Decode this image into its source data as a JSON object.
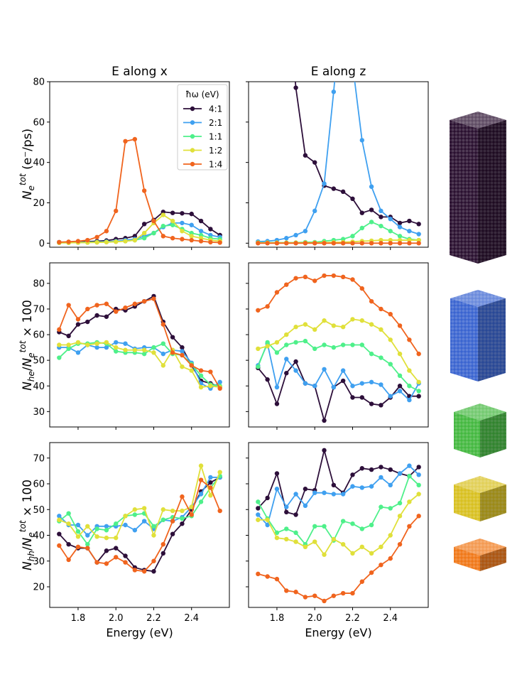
{
  "figure": {
    "col_titles": [
      "E along x",
      "E along z"
    ],
    "xlabel": "Energy (eV)",
    "ylabels": [
      "N_e^tot (e⁻/ps)",
      "N_he/N_e^tot × 100",
      "N_hh/N_e^tot × 100"
    ],
    "legend_title": "ħω (eV)",
    "legend_labels": [
      "4:1",
      "2:1",
      "1:1",
      "1:2",
      "1:4"
    ],
    "colors": [
      "#2d0f3a",
      "#3fa0f0",
      "#4ef08a",
      "#e0e03a",
      "#f0641e"
    ],
    "shape_icons": [
      "rod-4to1-icon",
      "rod-2to1-icon",
      "cube-1to1-icon",
      "slab-1to2-icon",
      "slab-1to4-icon"
    ],
    "shape_colors": [
      "#2a1030",
      "#3a64d0",
      "#44b840",
      "#d8c020",
      "#f07818"
    ]
  },
  "chart_data": [
    {
      "type": "line",
      "panel": "top-left",
      "title": "E along x",
      "xlim": [
        1.65,
        2.6
      ],
      "ylim": [
        -2,
        80
      ],
      "xticks": [
        1.8,
        2.0,
        2.2,
        2.4
      ],
      "yticks": [
        0,
        20,
        40,
        60,
        80
      ],
      "x": [
        1.7,
        1.75,
        1.8,
        1.85,
        1.9,
        1.95,
        2.0,
        2.05,
        2.1,
        2.15,
        2.2,
        2.25,
        2.3,
        2.35,
        2.4,
        2.45,
        2.5,
        2.55
      ],
      "series": [
        {
          "name": "4:1",
          "values": [
            0.5,
            0.5,
            0.7,
            0.8,
            1,
            1.3,
            2,
            2.5,
            3.5,
            9.5,
            11.5,
            15.5,
            15,
            14.8,
            14.5,
            11,
            7,
            4
          ]
        },
        {
          "name": "2:1",
          "values": [
            0.3,
            0.3,
            0.4,
            0.5,
            0.6,
            0.8,
            1,
            1.5,
            2,
            3.5,
            5,
            8,
            10,
            10,
            9,
            6,
            4,
            3
          ]
        },
        {
          "name": "1:1",
          "values": [
            0.2,
            0.2,
            0.3,
            0.4,
            0.5,
            0.6,
            0.8,
            1,
            1.5,
            2.5,
            5,
            8.5,
            9,
            7,
            5,
            4,
            2.5,
            2
          ]
        },
        {
          "name": "1:2",
          "values": [
            0.2,
            0.2,
            0.3,
            0.3,
            0.4,
            0.5,
            0.7,
            1,
            1.5,
            5,
            10,
            14,
            11,
            6,
            3.5,
            2.5,
            1.5,
            1
          ]
        },
        {
          "name": "1:4",
          "values": [
            0.5,
            0.7,
            1,
            1.5,
            3,
            6,
            16,
            50.5,
            51.5,
            26,
            11,
            3.5,
            2.5,
            2,
            1.5,
            1,
            0.5,
            0.3
          ]
        }
      ]
    },
    {
      "type": "line",
      "panel": "top-right",
      "title": "E along z",
      "xlim": [
        1.65,
        2.6
      ],
      "ylim": [
        -2,
        80
      ],
      "xticks": [
        1.8,
        2.0,
        2.2,
        2.4
      ],
      "yticks": [
        0,
        20,
        40,
        60,
        80
      ],
      "x": [
        1.7,
        1.75,
        1.8,
        1.85,
        1.9,
        1.95,
        2.0,
        2.05,
        2.1,
        2.15,
        2.2,
        2.25,
        2.3,
        2.35,
        2.4,
        2.45,
        2.5,
        2.55
      ],
      "series": [
        {
          "name": "4:1",
          "values": [
            null,
            null,
            null,
            null,
            77,
            43.5,
            40,
            28.5,
            27,
            25.5,
            22,
            15,
            16.5,
            13,
            13,
            10,
            11,
            9.5
          ]
        },
        {
          "name": "2:1",
          "values": [
            0.8,
            1,
            1.5,
            2.5,
            4,
            6,
            16,
            29.5,
            75,
            null,
            null,
            51,
            28,
            16,
            12,
            8,
            6,
            4.5
          ]
        },
        {
          "name": "1:1",
          "values": [
            0.3,
            0.3,
            0.3,
            0.3,
            0.3,
            0.5,
            0.5,
            1,
            1.5,
            2,
            3.5,
            7.5,
            10.5,
            8.5,
            6,
            3.5,
            2,
            1.5
          ]
        },
        {
          "name": "1:2",
          "values": [
            0.2,
            0.2,
            0.2,
            0.2,
            0.2,
            0.2,
            0.2,
            0.3,
            0.4,
            0.5,
            0.7,
            1,
            1.2,
            1.5,
            1.5,
            1.5,
            1.5,
            1.5
          ]
        },
        {
          "name": "1:4",
          "values": [
            0,
            0,
            0,
            0,
            0,
            0,
            0,
            0,
            0,
            0,
            0,
            0,
            0,
            0,
            0,
            0,
            0,
            0
          ]
        }
      ]
    },
    {
      "type": "line",
      "panel": "middle-left",
      "xlim": [
        1.65,
        2.6
      ],
      "ylim": [
        24,
        88
      ],
      "xticks": [
        1.8,
        2.0,
        2.2,
        2.4
      ],
      "yticks": [
        30,
        40,
        50,
        60,
        70,
        80
      ],
      "x": [
        1.7,
        1.75,
        1.8,
        1.85,
        1.9,
        1.95,
        2.0,
        2.05,
        2.1,
        2.15,
        2.2,
        2.25,
        2.3,
        2.35,
        2.4,
        2.45,
        2.5,
        2.55
      ],
      "series": [
        {
          "name": "4:1",
          "values": [
            61,
            59.5,
            64,
            65,
            67.5,
            67,
            70,
            69.5,
            71,
            73,
            75,
            65,
            59,
            55,
            48,
            42,
            41,
            39.5
          ]
        },
        {
          "name": "2:1",
          "values": [
            55,
            55,
            53,
            56,
            55,
            55,
            57,
            56.5,
            54.5,
            55,
            55,
            52.5,
            54,
            53.5,
            49,
            41,
            39,
            41.5
          ]
        },
        {
          "name": "1:1",
          "values": [
            51,
            54.5,
            56.5,
            56.5,
            57,
            56.5,
            53.5,
            53,
            53,
            52.5,
            55,
            56.5,
            52.5,
            52,
            48.5,
            44,
            40.5,
            40
          ]
        },
        {
          "name": "1:2",
          "values": [
            56,
            56,
            57,
            56,
            56.5,
            57,
            55,
            54,
            54,
            54,
            53,
            48,
            54,
            47.5,
            46,
            39.5,
            40,
            39.5
          ]
        },
        {
          "name": "1:4",
          "values": [
            62,
            71.5,
            66,
            70,
            71.5,
            72,
            69,
            70.5,
            72,
            73,
            74,
            64,
            53,
            52,
            48,
            46,
            45.5,
            39
          ]
        }
      ]
    },
    {
      "type": "line",
      "panel": "middle-right",
      "xlim": [
        1.65,
        2.6
      ],
      "ylim": [
        24,
        88
      ],
      "xticks": [
        1.8,
        2.0,
        2.2,
        2.4
      ],
      "yticks": [
        30,
        40,
        50,
        60,
        70,
        80
      ],
      "x": [
        1.7,
        1.75,
        1.8,
        1.85,
        1.9,
        1.95,
        2.0,
        2.05,
        2.1,
        2.15,
        2.2,
        2.25,
        2.3,
        2.35,
        2.4,
        2.45,
        2.5,
        2.55
      ],
      "series": [
        {
          "name": "4:1",
          "values": [
            47,
            42.5,
            33,
            45,
            49.5,
            41,
            40,
            26.5,
            39.5,
            42,
            35.5,
            35.5,
            33,
            32.5,
            35.5,
            40,
            36,
            36
          ]
        },
        {
          "name": "2:1",
          "values": [
            48,
            56.5,
            39.5,
            50.5,
            46,
            41,
            40,
            46.5,
            39.5,
            46,
            40,
            41,
            41.5,
            40.5,
            36,
            38,
            34.5,
            41
          ]
        },
        {
          "name": "1:1",
          "values": [
            47.5,
            57,
            53,
            56,
            57,
            57.5,
            54.5,
            56,
            55,
            56,
            56,
            56,
            52.5,
            51,
            48.5,
            44,
            40,
            38
          ]
        },
        {
          "name": "1:2",
          "values": [
            54.5,
            55.5,
            57,
            60,
            63,
            64,
            62,
            65.5,
            63.5,
            63,
            66,
            65.5,
            64,
            62,
            58,
            52.5,
            46,
            41.5
          ]
        },
        {
          "name": "1:4",
          "values": [
            69.5,
            71,
            76.5,
            79.5,
            82,
            82.5,
            81,
            83,
            83,
            82.5,
            81.5,
            78,
            73,
            70,
            68,
            63.5,
            58,
            52.5
          ]
        }
      ]
    },
    {
      "type": "line",
      "panel": "bottom-left",
      "xlim": [
        1.65,
        2.6
      ],
      "ylim": [
        12,
        76
      ],
      "xticks": [
        1.8,
        2.0,
        2.2,
        2.4
      ],
      "yticks": [
        20,
        30,
        40,
        50,
        60,
        70
      ],
      "x": [
        1.7,
        1.75,
        1.8,
        1.85,
        1.9,
        1.95,
        2.0,
        2.05,
        2.1,
        2.15,
        2.2,
        2.25,
        2.3,
        2.35,
        2.4,
        2.45,
        2.5,
        2.55
      ],
      "series": [
        {
          "name": "4:1",
          "values": [
            40.5,
            36.5,
            35,
            35,
            29.5,
            34,
            35,
            32,
            27.5,
            26.5,
            26,
            33,
            40.5,
            44.5,
            50,
            57,
            60.5,
            62.5
          ]
        },
        {
          "name": "2:1",
          "values": [
            47.5,
            44,
            44,
            40,
            43.5,
            43.5,
            43.5,
            44,
            42,
            45.5,
            42.5,
            46,
            45.5,
            47,
            51,
            56,
            62.5,
            62.5
          ]
        },
        {
          "name": "1:1",
          "values": [
            45.5,
            48.5,
            41.5,
            36.5,
            42.5,
            42,
            44.5,
            47.5,
            48,
            48.5,
            43.5,
            46,
            47,
            46.5,
            47.5,
            53,
            58.5,
            63
          ]
        },
        {
          "name": "1:2",
          "values": [
            46,
            44.5,
            39.5,
            43.5,
            39.5,
            39,
            39,
            47.5,
            50,
            50.5,
            40,
            50,
            49.5,
            49.5,
            51,
            67,
            55.5,
            64.5
          ]
        },
        {
          "name": "1:4",
          "values": [
            36,
            30.5,
            35.5,
            35,
            29.5,
            29,
            31.5,
            29.5,
            26.5,
            26,
            30,
            36.5,
            45.5,
            55,
            48,
            61.5,
            58.5,
            49.5
          ]
        }
      ]
    },
    {
      "type": "line",
      "panel": "bottom-right",
      "xlim": [
        1.65,
        2.6
      ],
      "ylim": [
        12,
        76
      ],
      "xticks": [
        1.8,
        2.0,
        2.2,
        2.4
      ],
      "yticks": [
        20,
        30,
        40,
        50,
        60,
        70
      ],
      "x": [
        1.7,
        1.75,
        1.8,
        1.85,
        1.9,
        1.95,
        2.0,
        2.05,
        2.1,
        2.15,
        2.2,
        2.25,
        2.3,
        2.35,
        2.4,
        2.45,
        2.5,
        2.55
      ],
      "series": [
        {
          "name": "4:1",
          "values": [
            50.5,
            54.5,
            64,
            49,
            48,
            58,
            57.5,
            73,
            59.5,
            56.5,
            63.5,
            66,
            65.5,
            66.5,
            65.5,
            64,
            63,
            66.5
          ]
        },
        {
          "name": "2:1",
          "values": [
            48,
            44,
            58,
            51,
            56,
            51.5,
            56.5,
            56.5,
            56,
            56,
            59,
            58.5,
            59,
            62.5,
            59.5,
            64,
            67,
            63.5
          ]
        },
        {
          "name": "1:1",
          "values": [
            53,
            46.5,
            41,
            42.5,
            41,
            36.5,
            43.5,
            43.5,
            38,
            45.5,
            44.5,
            42.5,
            44,
            51,
            50.5,
            52.5,
            63,
            59.5
          ]
        },
        {
          "name": "1:2",
          "values": [
            46,
            46,
            39,
            38.5,
            37.5,
            35.5,
            37.5,
            32.5,
            38.5,
            36.5,
            33,
            35.5,
            33,
            35.5,
            40,
            47.5,
            53,
            56
          ]
        },
        {
          "name": "1:4",
          "values": [
            25,
            24,
            23,
            18.5,
            18,
            16,
            16.5,
            14.5,
            16.5,
            17.5,
            17.5,
            22,
            25.5,
            28.5,
            31,
            36.5,
            43.5,
            47.5
          ]
        }
      ]
    }
  ]
}
